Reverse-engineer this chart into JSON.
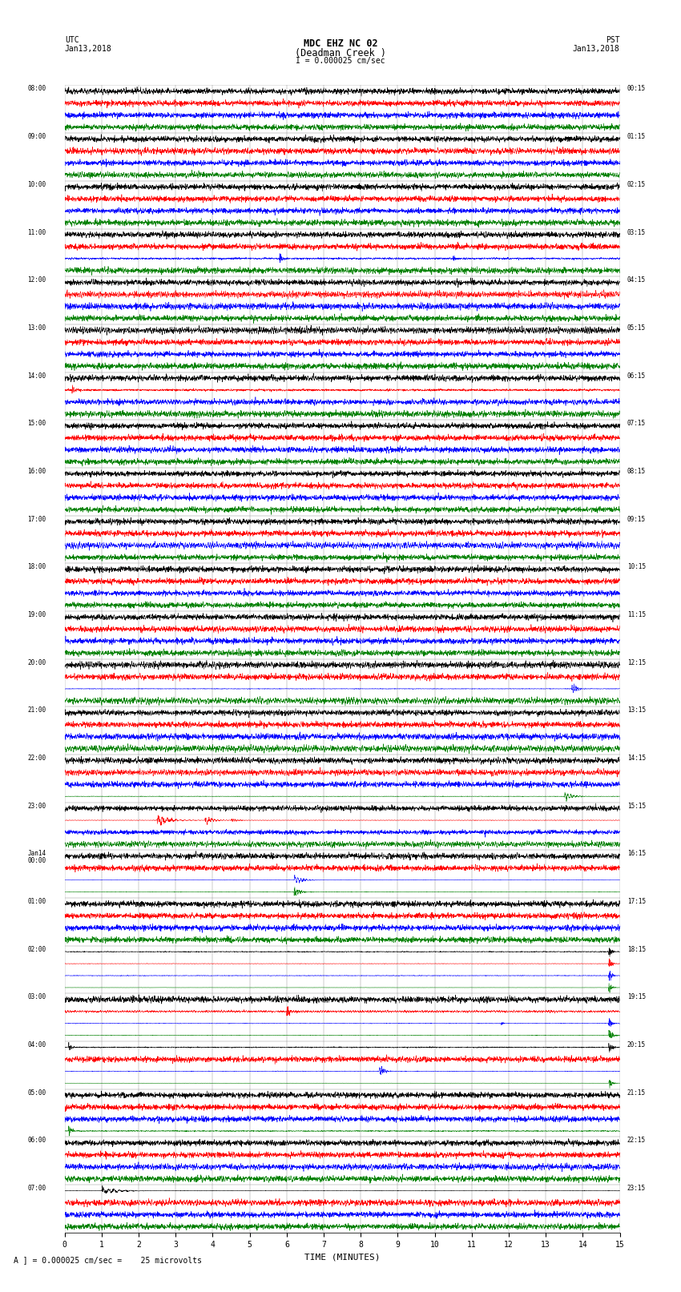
{
  "title_line1": "MDC EHZ NC 02",
  "title_line2": "(Deadman Creek )",
  "title_line3": "I = 0.000025 cm/sec",
  "left_header_line1": "UTC",
  "left_header_line2": "Jan13,2018",
  "right_header_line1": "PST",
  "right_header_line2": "Jan13,2018",
  "xlabel": "TIME (MINUTES)",
  "bottom_note": "A ] = 0.000025 cm/sec =    25 microvolts",
  "utc_labels": [
    "08:00",
    "09:00",
    "10:00",
    "11:00",
    "12:00",
    "13:00",
    "14:00",
    "15:00",
    "16:00",
    "17:00",
    "18:00",
    "19:00",
    "20:00",
    "21:00",
    "22:00",
    "23:00",
    "Jan14\n00:00",
    "01:00",
    "02:00",
    "03:00",
    "04:00",
    "05:00",
    "06:00",
    "07:00"
  ],
  "pst_labels": [
    "00:15",
    "01:15",
    "02:15",
    "03:15",
    "04:15",
    "05:15",
    "06:15",
    "07:15",
    "08:15",
    "09:15",
    "10:15",
    "11:15",
    "12:15",
    "13:15",
    "14:15",
    "15:15",
    "16:15",
    "17:15",
    "18:15",
    "19:15",
    "20:15",
    "21:15",
    "22:15",
    "23:15"
  ],
  "n_hours": 24,
  "n_traces_per_hour": 4,
  "colors": [
    "black",
    "red",
    "blue",
    "green"
  ],
  "noise_scale": [
    0.012,
    0.008,
    0.007,
    0.006
  ],
  "bg_color": "white",
  "trace_linewidth": 0.4,
  "minutes_max": 15,
  "events": [
    {
      "hour": 3,
      "trace": 2,
      "minute": 5.8,
      "amp": 0.12,
      "dur": 0.3
    },
    {
      "hour": 3,
      "trace": 2,
      "minute": 10.5,
      "amp": 0.08,
      "dur": 0.2
    },
    {
      "hour": 6,
      "trace": 1,
      "minute": 0.2,
      "amp": 0.1,
      "dur": 0.4
    },
    {
      "hour": 12,
      "trace": 2,
      "minute": 13.7,
      "amp": 0.35,
      "dur": 0.5
    },
    {
      "hour": 14,
      "trace": 3,
      "minute": 13.5,
      "amp": 0.3,
      "dur": 0.8
    },
    {
      "hour": 15,
      "trace": 1,
      "minute": 2.5,
      "amp": 0.6,
      "dur": 1.2
    },
    {
      "hour": 15,
      "trace": 1,
      "minute": 3.8,
      "amp": 0.4,
      "dur": 0.8
    },
    {
      "hour": 15,
      "trace": 1,
      "minute": 4.5,
      "amp": 0.25,
      "dur": 0.5
    },
    {
      "hour": 16,
      "trace": 2,
      "minute": 6.2,
      "amp": 0.5,
      "dur": 0.8
    },
    {
      "hour": 16,
      "trace": 3,
      "minute": 6.2,
      "amp": 0.3,
      "dur": 0.6
    },
    {
      "hour": 18,
      "trace": 3,
      "minute": 14.7,
      "amp": 0.9,
      "dur": 0.3
    },
    {
      "hour": 18,
      "trace": 0,
      "minute": 14.7,
      "amp": 0.5,
      "dur": 0.3
    },
    {
      "hour": 18,
      "trace": 1,
      "minute": 14.7,
      "amp": 0.6,
      "dur": 0.3
    },
    {
      "hour": 18,
      "trace": 2,
      "minute": 14.7,
      "amp": 0.4,
      "dur": 0.3
    },
    {
      "hour": 19,
      "trace": 3,
      "minute": 14.7,
      "amp": 0.7,
      "dur": 0.3
    },
    {
      "hour": 19,
      "trace": 2,
      "minute": 14.7,
      "amp": 0.4,
      "dur": 0.3
    },
    {
      "hour": 20,
      "trace": 3,
      "minute": 14.7,
      "amp": 0.8,
      "dur": 0.3
    },
    {
      "hour": 20,
      "trace": 0,
      "minute": 14.7,
      "amp": 0.4,
      "dur": 0.3
    },
    {
      "hour": 20,
      "trace": 2,
      "minute": 8.5,
      "amp": 0.5,
      "dur": 0.5
    },
    {
      "hour": 20,
      "trace": 0,
      "minute": 0.1,
      "amp": 0.2,
      "dur": 0.3
    },
    {
      "hour": 19,
      "trace": 1,
      "minute": 6.0,
      "amp": 0.15,
      "dur": 0.3
    },
    {
      "hour": 19,
      "trace": 2,
      "minute": 11.8,
      "amp": 0.15,
      "dur": 0.2
    },
    {
      "hour": 21,
      "trace": 3,
      "minute": 0.1,
      "amp": 0.2,
      "dur": 0.3
    },
    {
      "hour": 23,
      "trace": 0,
      "minute": 1.0,
      "amp": 0.6,
      "dur": 1.5
    }
  ]
}
